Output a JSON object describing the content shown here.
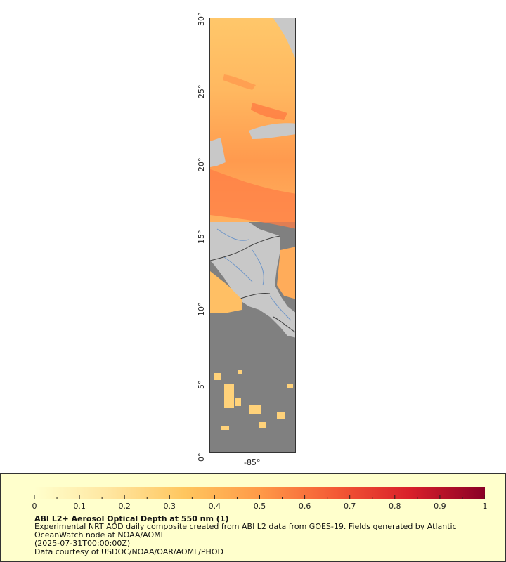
{
  "map": {
    "lat_labels": [
      "30°",
      "25°",
      "20°",
      "15°",
      "10°",
      "5°",
      "0°"
    ],
    "lon_labels": [
      "-85°"
    ],
    "lat_range": [
      0,
      30
    ],
    "colors": {
      "no_data_ocean": "#808080",
      "land": "#c8c8c8",
      "rivers": "#6f96c8",
      "borders": "#404040"
    }
  },
  "legend": {
    "colorbar_ticks": [
      "0",
      "0.1",
      "0.2",
      "0.3",
      "0.4",
      "0.5",
      "0.6",
      "0.7",
      "0.8",
      "0.9",
      "1"
    ],
    "colorbar_range": [
      0,
      1
    ],
    "colorbar_stops": [
      "#ffffcc",
      "#ffe6a0",
      "#ffc65e",
      "#ff9a48",
      "#f45a35",
      "#d9202a",
      "#8a0026"
    ],
    "title": "ABI L2+ Aerosol Optical Depth at 550 nm (1)",
    "description_line1": "Experimental NRT AOD daily composite created from ABI L2 data from GOES-19. Fields generated by Atlantic",
    "description_line2": "OceanWatch node at NOAA/AOML",
    "timestamp": "(2025-07-31T00:00:00Z)",
    "credit": "Data courtesy of USDOC/NOAA/OAR/AOML/PHOD"
  }
}
